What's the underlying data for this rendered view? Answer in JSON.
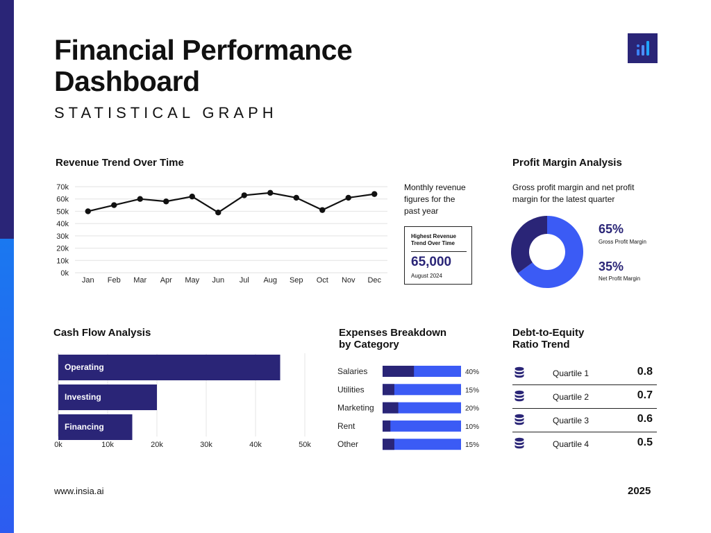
{
  "header": {
    "title_line1": "Financial Performance",
    "title_line2": "Dashboard",
    "subtitle": "STATISTICAL GRAPH"
  },
  "colors": {
    "navy": "#2a2577",
    "blue": "#3b5bf5",
    "accent": "#1a78f0"
  },
  "revenue": {
    "title": "Revenue Trend Over Time",
    "note": [
      "Monthly revenue",
      "figures for the",
      "past year"
    ],
    "callout": {
      "label_line1": "Highest Revenue",
      "label_line2": "Trend Over Time",
      "value": "65,000",
      "date": "August 2024"
    }
  },
  "profit": {
    "title": "Profit Margin Analysis",
    "desc": [
      "Gross profit margin and net profit",
      "margin for the latest quarter"
    ],
    "gross_value": "65%",
    "gross_label": "Gross Profit Margin",
    "net_value": "35%",
    "net_label": "Net Profit Margin"
  },
  "cashflow": {
    "title": "Cash Flow Analysis"
  },
  "expenses": {
    "title_line1": "Expenses Breakdown",
    "title_line2": "by Category"
  },
  "debt": {
    "title_line1": "Debt-to-Equity",
    "title_line2": "Ratio Trend",
    "icon": "database-icon",
    "rows": [
      {
        "label": "Quartile 1",
        "value": "0.8"
      },
      {
        "label": "Quartile 2",
        "value": "0.7"
      },
      {
        "label": "Quartile 3",
        "value": "0.6"
      },
      {
        "label": "Quartile 4",
        "value": "0.5"
      }
    ]
  },
  "footer": {
    "website": "www.insia.ai",
    "year": "2025"
  },
  "chart_data": [
    {
      "type": "line",
      "title": "Revenue Trend Over Time",
      "categories": [
        "Jan",
        "Feb",
        "Mar",
        "Apr",
        "May",
        "Jun",
        "Jul",
        "Aug",
        "Sep",
        "Oct",
        "Nov",
        "Dec"
      ],
      "values": [
        50000,
        55000,
        60000,
        58000,
        62000,
        49000,
        63000,
        65000,
        61000,
        51000,
        61000,
        64000
      ],
      "yticks": [
        "0k",
        "10k",
        "20k",
        "30k",
        "40k",
        "50k",
        "60k",
        "70k"
      ],
      "ylim": [
        0,
        70000
      ],
      "grid": true
    },
    {
      "type": "pie",
      "title": "Profit Margin Analysis",
      "labels": [
        "Gross Profit Margin",
        "Net Profit Margin"
      ],
      "values": [
        65,
        35
      ]
    },
    {
      "type": "bar",
      "title": "Cash Flow Analysis",
      "orientation": "horizontal",
      "categories": [
        "Operating",
        "Investing",
        "Financing"
      ],
      "values": [
        45000,
        20000,
        15000
      ],
      "xticks": [
        "0k",
        "10k",
        "20k",
        "30k",
        "40k",
        "50k"
      ],
      "xlim": [
        0,
        50000
      ],
      "grid": true
    },
    {
      "type": "bar",
      "title": "Expenses Breakdown by Category",
      "orientation": "horizontal",
      "categories": [
        "Salaries",
        "Utilities",
        "Marketing",
        "Rent",
        "Other"
      ],
      "values": [
        40,
        15,
        20,
        10,
        15
      ],
      "value_labels": [
        "40%",
        "15%",
        "20%",
        "10%",
        "15%"
      ]
    }
  ]
}
